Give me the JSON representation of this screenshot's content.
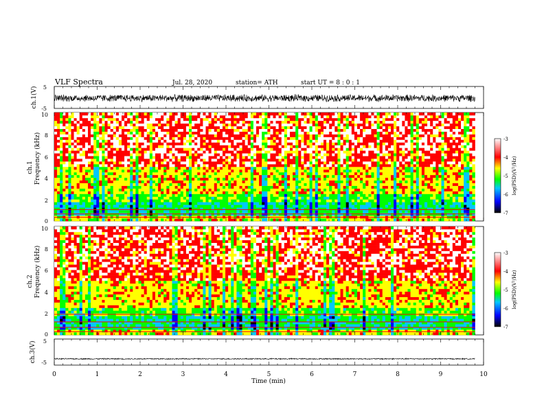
{
  "header": {
    "title": "VLF  Spectra",
    "date": "Jul.  28,  2020",
    "station": "station= ATH",
    "start_ut": "start  UT  =    8  : 0   : 1"
  },
  "chart_data": [
    {
      "type": "line",
      "name": "ch1-waveform",
      "ylabel": "ch.1(V)",
      "ylim": [
        -5,
        5
      ],
      "yticks": [
        "5",
        "-5"
      ],
      "xlim": [
        0,
        10
      ],
      "envelope": {
        "center": -0.3,
        "amplitude": 1.8
      }
    },
    {
      "type": "heatmap",
      "name": "ch1-spectrogram",
      "ylabel_top": "ch.1",
      "ylabel": "Frequency  (kHz)",
      "ylim": [
        0,
        10
      ],
      "yticks": [
        "0",
        "2",
        "4",
        "6",
        "8",
        "10"
      ],
      "xlim": [
        0,
        10
      ],
      "data_end_min": 9.8,
      "colorbar": {
        "label": "log(PSD)(V²/Hz)",
        "range": [
          -7,
          -3
        ],
        "ticks": [
          "-3",
          "-4",
          "-5",
          "-6",
          "-7"
        ]
      }
    },
    {
      "type": "heatmap",
      "name": "ch2-spectrogram",
      "ylabel_top": "ch.2",
      "ylabel": "Frequency  (kHz)",
      "ylim": [
        0,
        10
      ],
      "yticks": [
        "0",
        "2",
        "4",
        "6",
        "8",
        "10"
      ],
      "xlim": [
        0,
        10
      ],
      "data_end_min": 9.8,
      "colorbar": {
        "label": "log(PSD)(V²/Hz)",
        "range": [
          -7,
          -3
        ],
        "ticks": [
          "-3",
          "-4",
          "-5",
          "-6",
          "-7"
        ]
      }
    },
    {
      "type": "line",
      "name": "ch3-waveform",
      "ylabel": "ch.3(V)",
      "ylim": [
        -5,
        5
      ],
      "yticks": [
        "5",
        "-5"
      ],
      "xlim": [
        0,
        10
      ],
      "envelope": {
        "center": -2.6,
        "amplitude": 0.25
      }
    }
  ],
  "xaxis": {
    "label": "Time  (min)",
    "ticks": [
      "0",
      "1",
      "2",
      "3",
      "4",
      "5",
      "6",
      "7",
      "8",
      "9",
      "10"
    ]
  },
  "colors": {
    "scale": [
      "#000000",
      "#0000ff",
      "#00c8ff",
      "#00ff00",
      "#ffff00",
      "#ff0000",
      "#ffffff"
    ]
  }
}
